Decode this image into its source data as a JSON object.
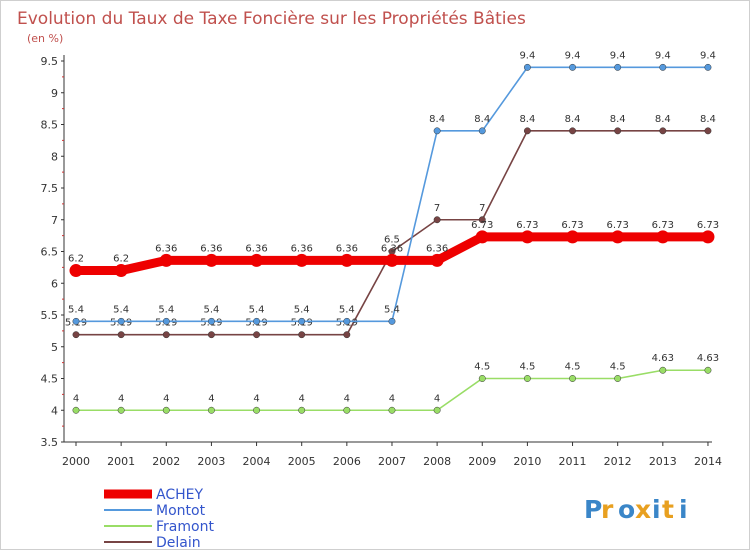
{
  "chart_data": {
    "type": "line",
    "title": "Evolution du Taux de Taxe Foncière sur les Propriétés Bâties",
    "unit_label": "(en %)",
    "xlabel": "",
    "ylabel": "(en %)",
    "x": [
      "2000",
      "2001",
      "2002",
      "2003",
      "2004",
      "2005",
      "2006",
      "2007",
      "2008",
      "2009",
      "2010",
      "2011",
      "2012",
      "2013",
      "2014"
    ],
    "ylim": [
      3.5,
      9.5
    ],
    "yticks": [
      "3.5",
      "4",
      "4.5",
      "5",
      "5.5",
      "6",
      "6.5",
      "7",
      "7.5",
      "8",
      "8.5",
      "9",
      "9.5"
    ],
    "grid": false,
    "legend_position": "bottom-left",
    "series": [
      {
        "name": "ACHEY",
        "color": "#ee0000",
        "values": [
          6.2,
          6.2,
          6.36,
          6.36,
          6.36,
          6.36,
          6.36,
          6.36,
          6.36,
          6.73,
          6.73,
          6.73,
          6.73,
          6.73,
          6.73
        ],
        "labels": [
          "6.2",
          "6.2",
          "6.36",
          "6.36",
          "6.36",
          "6.36",
          "6.36",
          "6.36",
          "6.36",
          "6.73",
          "6.73",
          "6.73",
          "6.73",
          "6.73",
          "6.73"
        ]
      },
      {
        "name": "Montot",
        "color": "#5599dd",
        "values": [
          5.4,
          5.4,
          5.4,
          5.4,
          5.4,
          5.4,
          5.4,
          5.4,
          8.4,
          8.4,
          9.4,
          9.4,
          9.4,
          9.4,
          9.4
        ],
        "labels": [
          "5.4",
          "5.4",
          "5.4",
          "5.4",
          "5.4",
          "5.4",
          "5.4",
          "5.4",
          "8.4",
          "8.4",
          "9.4",
          "9.4",
          "9.4",
          "9.4",
          "9.4"
        ]
      },
      {
        "name": "Framont",
        "color": "#99dd66",
        "values": [
          4,
          4,
          4,
          4,
          4,
          4,
          4,
          4,
          4,
          4.5,
          4.5,
          4.5,
          4.5,
          4.63,
          4.63
        ],
        "labels": [
          "4",
          "4",
          "4",
          "4",
          "4",
          "4",
          "4",
          "4",
          "4",
          "4.5",
          "4.5",
          "4.5",
          "4.5",
          "4.63",
          "4.63"
        ]
      },
      {
        "name": "Delain",
        "color": "#774444",
        "values": [
          5.19,
          5.19,
          5.19,
          5.19,
          5.19,
          5.19,
          5.19,
          6.5,
          7,
          7,
          8.4,
          8.4,
          8.4,
          8.4,
          8.4
        ],
        "labels": [
          "5.19",
          "5.19",
          "5.19",
          "5.19",
          "5.19",
          "5.19",
          "5.19",
          "6.5",
          "7",
          "7",
          "8.4",
          "8.4",
          "8.4",
          "8.4",
          "8.4"
        ]
      }
    ]
  },
  "brand": {
    "name": "Proxiti",
    "letters": [
      "P",
      "r",
      "o",
      "x",
      "i",
      "t",
      "i"
    ],
    "colors": [
      "#3a86c8",
      "#e8a020",
      "#3a86c8",
      "#e8a020",
      "#3a86c8",
      "#e8a020",
      "#3a86c8"
    ]
  }
}
